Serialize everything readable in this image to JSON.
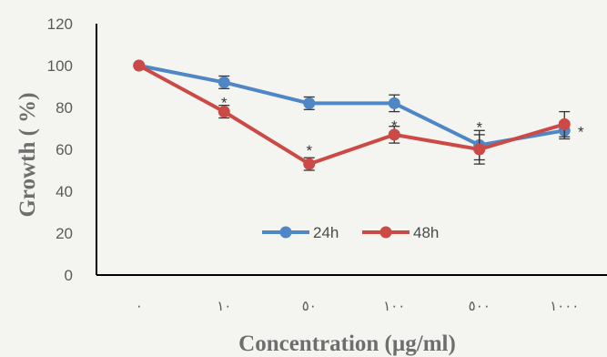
{
  "chart_data": {
    "type": "line",
    "title": "",
    "xlabel": "Concentration (µg/ml)",
    "ylabel": "Growth ( %)",
    "categories": [
      "٠",
      "١٠",
      "٥٠",
      "١٠٠",
      "٥٠٠",
      "١٠٠٠"
    ],
    "ylim": [
      0,
      120
    ],
    "yticks": [
      "0",
      "20",
      "40",
      "60",
      "80",
      "100",
      "120"
    ],
    "grid": false,
    "legend_position": "bottom-center",
    "series": [
      {
        "name": "24h",
        "color": "#4f86c6",
        "values": [
          100,
          92,
          82,
          82,
          62,
          69
        ],
        "errors": [
          0,
          3,
          3,
          4,
          7,
          4
        ],
        "significance": [
          "",
          "",
          "",
          "",
          "",
          ""
        ]
      },
      {
        "name": "48h",
        "color": "#cc4a46",
        "values": [
          100,
          78,
          53,
          67,
          60,
          72
        ],
        "errors": [
          0,
          3,
          3,
          4,
          7,
          6
        ],
        "significance": [
          "",
          "*",
          "*",
          "*",
          "*",
          "*"
        ]
      }
    ]
  }
}
